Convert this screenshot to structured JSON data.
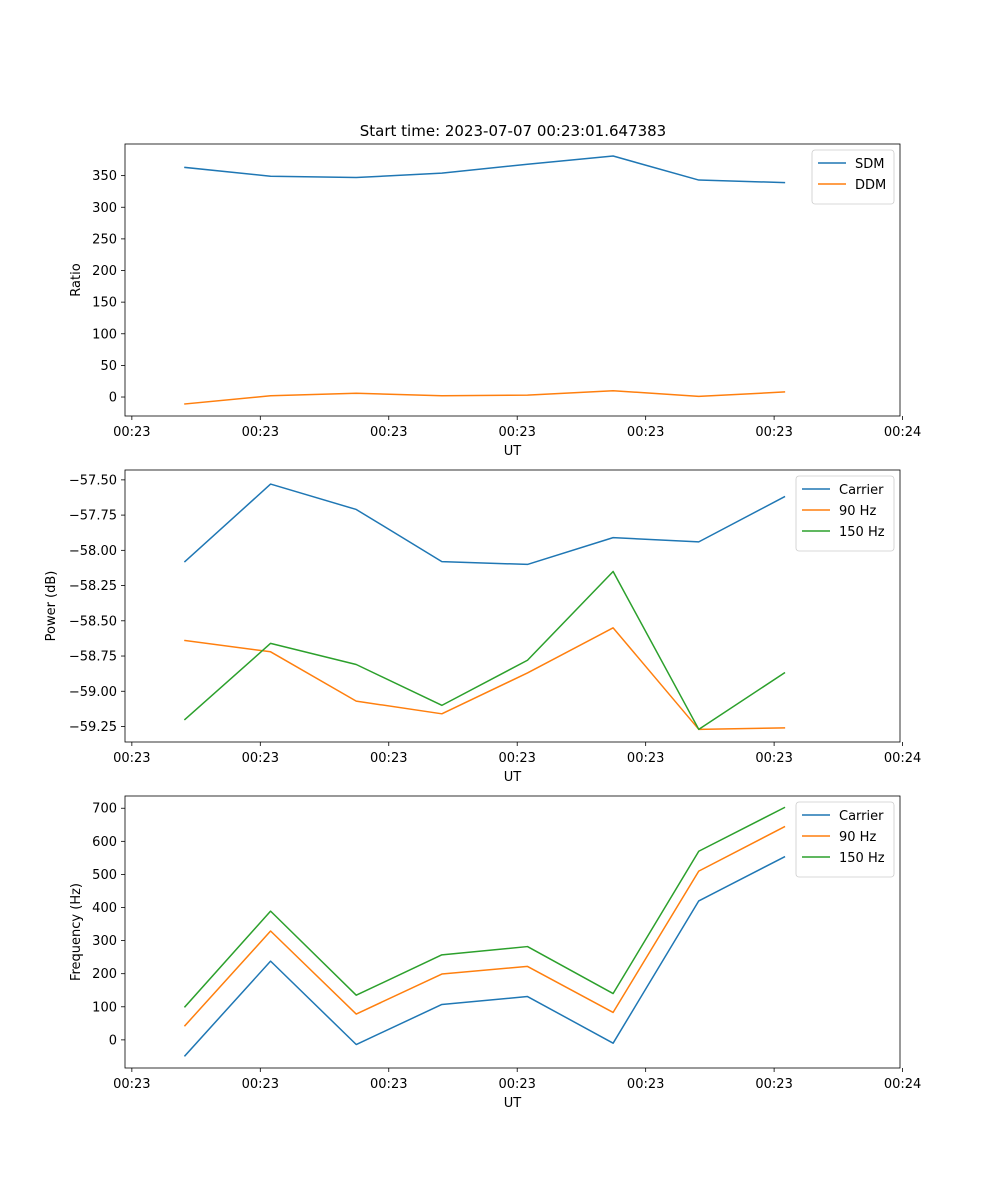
{
  "figure_title": "Start time: 2023-07-07 00:23:01.647383",
  "colors": {
    "blue": "#1f77b4",
    "orange": "#ff7f0e",
    "green": "#2ca02c"
  },
  "chart_data": [
    {
      "type": "line",
      "title": "Start time: 2023-07-07 00:23:01.647383",
      "xlabel": "UT",
      "ylabel": "Ratio",
      "x": [
        0,
        1,
        2,
        3,
        4,
        5,
        6,
        7
      ],
      "xlim": [
        -0.7,
        8.35
      ],
      "xtick_positions": [
        -0.62,
        0.88,
        2.38,
        3.88,
        5.38,
        6.88,
        8.38
      ],
      "xtick_labels": [
        "00:23",
        "00:23",
        "00:23",
        "00:23",
        "00:23",
        "00:23",
        "00:24"
      ],
      "ylim": [
        -30,
        400
      ],
      "yticks": [
        0,
        50,
        100,
        150,
        200,
        250,
        300,
        350
      ],
      "ytick_labels": [
        "0",
        "50",
        "100",
        "150",
        "200",
        "250",
        "300",
        "350"
      ],
      "legend_position": "top-right",
      "series": [
        {
          "name": "SDM",
          "color": "#1f77b4",
          "values": [
            363,
            349,
            347,
            354,
            368,
            381,
            343,
            339
          ]
        },
        {
          "name": "DDM",
          "color": "#ff7f0e",
          "values": [
            -11,
            2,
            6,
            2,
            3,
            10,
            1,
            8
          ]
        }
      ]
    },
    {
      "type": "line",
      "title": "",
      "xlabel": "UT",
      "ylabel": "Power (dB)",
      "x": [
        0,
        1,
        2,
        3,
        4,
        5,
        6,
        7
      ],
      "xlim": [
        -0.7,
        8.35
      ],
      "xtick_positions": [
        -0.62,
        0.88,
        2.38,
        3.88,
        5.38,
        6.88,
        8.38
      ],
      "xtick_labels": [
        "00:23",
        "00:23",
        "00:23",
        "00:23",
        "00:23",
        "00:23",
        "00:24"
      ],
      "ylim": [
        -59.36,
        -57.43
      ],
      "yticks": [
        -57.5,
        -57.75,
        -58.0,
        -58.25,
        -58.5,
        -58.75,
        -59.0,
        -59.25
      ],
      "ytick_labels": [
        "−57.50",
        "−57.75",
        "−58.00",
        "−58.25",
        "−58.50",
        "−58.75",
        "−59.00",
        "−59.25"
      ],
      "legend_position": "top-right",
      "series": [
        {
          "name": "Carrier",
          "color": "#1f77b4",
          "values": [
            -58.08,
            -57.53,
            -57.71,
            -58.08,
            -58.1,
            -57.91,
            -57.94,
            -57.62
          ]
        },
        {
          "name": "90 Hz",
          "color": "#ff7f0e",
          "values": [
            -58.64,
            -58.72,
            -59.07,
            -59.16,
            -58.87,
            -58.55,
            -59.27,
            -59.26
          ]
        },
        {
          "name": "150 Hz",
          "color": "#2ca02c",
          "values": [
            -59.2,
            -58.66,
            -58.81,
            -59.1,
            -58.78,
            -58.15,
            -59.27,
            -58.87
          ]
        }
      ]
    },
    {
      "type": "line",
      "title": "",
      "xlabel": "UT",
      "ylabel": "Frequency (Hz)",
      "x": [
        0,
        1,
        2,
        3,
        4,
        5,
        6,
        7
      ],
      "xlim": [
        -0.7,
        8.35
      ],
      "xtick_positions": [
        -0.62,
        0.88,
        2.38,
        3.88,
        5.38,
        6.88,
        8.38
      ],
      "xtick_labels": [
        "00:23",
        "00:23",
        "00:23",
        "00:23",
        "00:23",
        "00:23",
        "00:24"
      ],
      "ylim": [
        -85,
        737
      ],
      "yticks": [
        0,
        100,
        200,
        300,
        400,
        500,
        600,
        700
      ],
      "ytick_labels": [
        "0",
        "100",
        "200",
        "300",
        "400",
        "500",
        "600",
        "700"
      ],
      "legend_position": "top-right",
      "series": [
        {
          "name": "Carrier",
          "color": "#1f77b4",
          "values": [
            -48,
            238,
            -14,
            107,
            131,
            -10,
            420,
            553
          ]
        },
        {
          "name": "90 Hz",
          "color": "#ff7f0e",
          "values": [
            43,
            329,
            78,
            199,
            222,
            83,
            510,
            644
          ]
        },
        {
          "name": "150 Hz",
          "color": "#2ca02c",
          "values": [
            100,
            389,
            135,
            257,
            282,
            140,
            570,
            702
          ]
        }
      ]
    }
  ]
}
